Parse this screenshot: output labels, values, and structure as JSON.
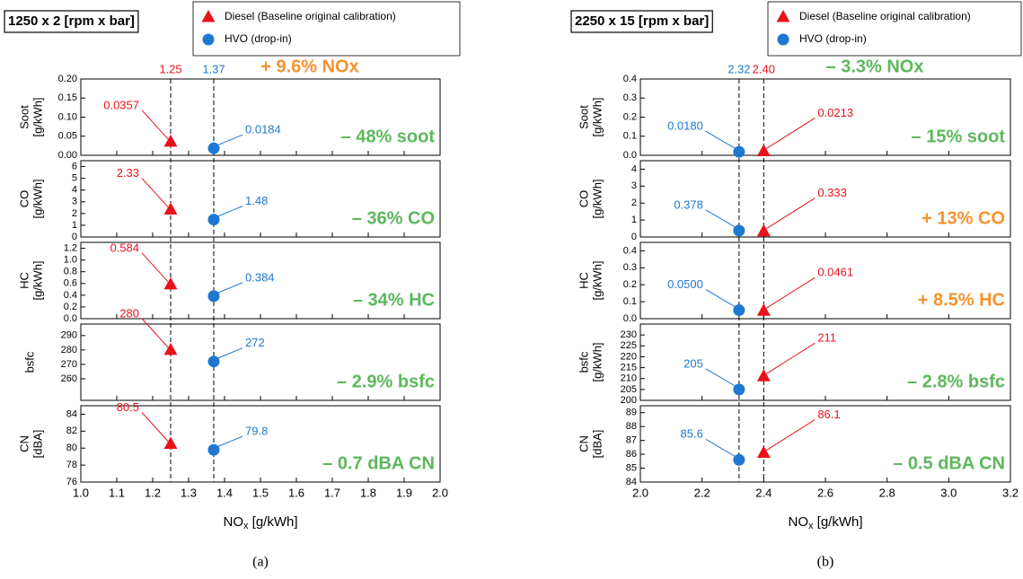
{
  "chart_data": [
    {
      "type": "scatter",
      "title": "1250 x 2 [rpm x bar]",
      "series": [
        {
          "name": "Diesel (Baseline original calibration)",
          "color": "#e8121a",
          "marker": "triangle",
          "x": 1.25
        },
        {
          "name": "HVO (drop-in)",
          "color": "#1e78d2",
          "marker": "circle",
          "x": 1.37
        }
      ],
      "xlabel": [
        "NO",
        "x",
        " [g/kWh]"
      ],
      "xlim": [
        1.0,
        2.0
      ],
      "xticks": [
        {
          "value": 1.0,
          "label": "1.0"
        },
        1.1,
        1.2,
        1.3,
        1.4,
        1.5,
        1.6,
        1.7,
        1.8,
        1.9,
        {
          "value": 2.0,
          "label": "2.0"
        }
      ],
      "annotation": "+ 9.6% NOx",
      "annotation_color": "#f7922f",
      "caption": "(a)",
      "subplots": [
        {
          "ylabel": "Soot",
          "yunit": "[g/kWh]",
          "ylim": [
            0,
            0.2
          ],
          "yticks": [
            {
              "value": 0,
              "label": "0.00"
            },
            0.05,
            {
              "value": 0.1,
              "label": "0.10"
            },
            0.15,
            {
              "value": 0.2,
              "label": "0.20"
            }
          ],
          "values": [
            0.0357,
            0.0184
          ],
          "annotation": "– 48% soot",
          "annotation_color": "#5cb85c"
        },
        {
          "ylabel": "CO",
          "yunit": "[g/kWh]",
          "ylim": [
            0,
            6.5
          ],
          "yticks": [
            0,
            1,
            2,
            3,
            4,
            5,
            6
          ],
          "values": [
            2.33,
            1.48
          ],
          "annotation": "– 36% CO",
          "annotation_color": "#5cb85c"
        },
        {
          "ylabel": "HC",
          "yunit": "[g/kWh]",
          "ylim": [
            0,
            1.3
          ],
          "yticks": [
            {
              "value": 0,
              "label": "0.0"
            },
            0.2,
            0.4,
            0.6,
            0.8,
            {
              "value": 1,
              "label": "1.0"
            },
            1.2
          ],
          "values": [
            0.584,
            0.384
          ],
          "annotation": "– 34% HC",
          "annotation_color": "#5cb85c"
        },
        {
          "ylabel": "bsfc",
          "ylim": [
            245,
            298
          ],
          "yticks": [
            260,
            270,
            280,
            290
          ],
          "values": [
            280,
            272
          ],
          "annotation": "– 2.9% bsfc",
          "annotation_color": "#5cb85c"
        },
        {
          "ylabel": "CN",
          "yunit": "[dBA]",
          "ylim": [
            76,
            85
          ],
          "yticks": [
            76,
            78,
            80,
            82,
            84
          ],
          "values": [
            80.5,
            79.8
          ],
          "annotation": "– 0.7 dBA CN",
          "annotation_color": "#5cb85c"
        }
      ]
    },
    {
      "type": "scatter",
      "title": "2250 x 15 [rpm x bar]",
      "series": [
        {
          "name": "Diesel (Baseline original calibration)",
          "color": "#e8121a",
          "marker": "triangle",
          "x": 2.4,
          "x_label": "2.40"
        },
        {
          "name": "HVO (drop-in)",
          "color": "#1e78d2",
          "marker": "circle",
          "x": 2.32
        }
      ],
      "xlabel": [
        "NO",
        "x",
        " [g/kWh]"
      ],
      "xlim": [
        2.0,
        3.2
      ],
      "xticks": [
        {
          "value": 2.0,
          "label": "2.0"
        },
        2.2,
        2.4,
        2.6,
        2.8,
        {
          "value": 3.0,
          "label": "3.0"
        },
        3.2
      ],
      "annotation": "– 3.3% NOx",
      "annotation_color": "#5cb85c",
      "caption": "(b)",
      "subplots": [
        {
          "ylabel": "Soot",
          "yunit": "[g/kWh]",
          "ylim": [
            0,
            0.4
          ],
          "yticks": [
            {
              "value": 0,
              "label": "0.0"
            },
            0.1,
            0.2,
            0.3,
            0.4
          ],
          "values": [
            0.0213,
            0.018
          ],
          "value_labels": [
            "0.0213",
            "0.0180"
          ],
          "annotation": "– 15% soot",
          "annotation_color": "#5cb85c"
        },
        {
          "ylabel": "CO",
          "yunit": "[g/kWh]",
          "ylim": [
            0,
            4.5
          ],
          "yticks": [
            0,
            1,
            2,
            3,
            4
          ],
          "values": [
            0.333,
            0.378
          ],
          "annotation": "+ 13% CO",
          "annotation_color": "#f7922f"
        },
        {
          "ylabel": "HC",
          "yunit": "[g/kWh]",
          "ylim": [
            0,
            0.45
          ],
          "yticks": [
            {
              "value": 0,
              "label": "0.0"
            },
            0.1,
            0.2,
            0.3,
            0.4
          ],
          "values": [
            0.0461,
            0.05
          ],
          "value_labels": [
            "0.0461",
            "0.0500"
          ],
          "annotation": "+ 8.5% HC",
          "annotation_color": "#f7922f"
        },
        {
          "ylabel": "bsfc",
          "yunit": "[g/kWh]",
          "ylim": [
            200,
            235
          ],
          "yticks": [
            200,
            205,
            210,
            215,
            220,
            225,
            230
          ],
          "values": [
            211,
            205
          ],
          "annotation": "– 2.8% bsfc",
          "annotation_color": "#5cb85c"
        },
        {
          "ylabel": "CN",
          "yunit": "[dBA]",
          "ylim": [
            84,
            89.5
          ],
          "yticks": [
            84,
            85,
            86,
            87,
            88,
            89
          ],
          "values": [
            86.1,
            85.6
          ],
          "annotation": "– 0.5 dBA CN",
          "annotation_color": "#5cb85c"
        }
      ]
    }
  ]
}
